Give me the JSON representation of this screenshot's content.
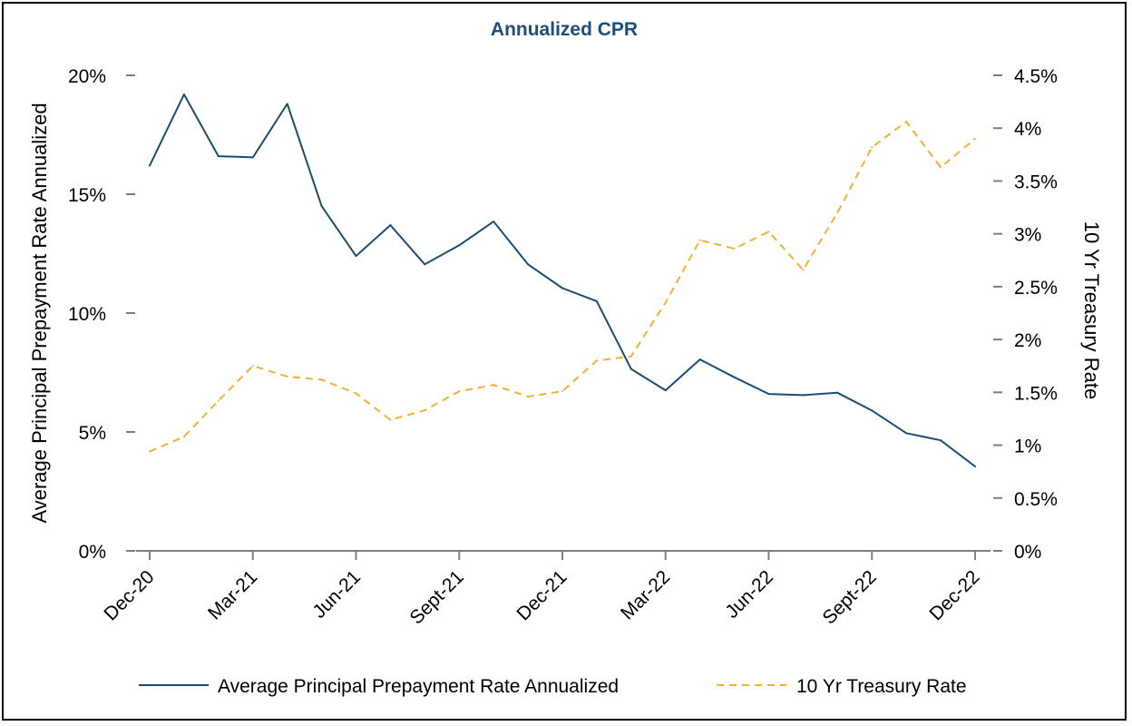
{
  "colors": {
    "title": "#1f4e79",
    "cpr_line": "#1b4f72",
    "treasury_line": "#f2b134",
    "axis": "#7f7f7f"
  },
  "chart_data": {
    "type": "line",
    "title": "Annualized CPR",
    "xlabel": "",
    "ylabel": "Average Principal Prepayment Rate Annualized",
    "y2label": "10 Yr Treasury Rate",
    "x_tick_labels": [
      "Dec-20",
      "Mar-21",
      "Jun-21",
      "Sept-21",
      "Dec-21",
      "Mar-22",
      "Jun-22",
      "Sept-22",
      "Dec-22"
    ],
    "x_tick_positions": [
      0,
      3,
      6,
      9,
      12,
      15,
      18,
      21,
      24
    ],
    "x_count": 25,
    "ylim": [
      0,
      20
    ],
    "y_ticks": [
      0,
      5,
      10,
      15,
      20
    ],
    "y_tick_labels": [
      "0%",
      "5%",
      "10%",
      "15%",
      "20%"
    ],
    "y2lim": [
      0,
      4.5
    ],
    "y2_ticks": [
      0,
      0.5,
      1,
      1.5,
      2,
      2.5,
      3,
      3.5,
      4,
      4.5
    ],
    "y2_tick_labels": [
      "0%",
      "0.5%",
      "1%",
      "1.5%",
      "2%",
      "2.5%",
      "3%",
      "3.5%",
      "4%",
      "4.5%"
    ],
    "legend_position": "bottom",
    "series": [
      {
        "name": "Average Principal Prepayment Rate Annualized",
        "axis": "left",
        "style": "solid",
        "values": [
          16.2,
          19.2,
          16.6,
          16.55,
          18.8,
          14.5,
          12.4,
          13.7,
          12.05,
          12.85,
          13.85,
          12.05,
          11.05,
          10.5,
          7.65,
          6.75,
          8.05,
          7.3,
          6.6,
          6.55,
          6.65,
          5.9,
          4.95,
          4.65,
          3.55
        ]
      },
      {
        "name": "10 Yr Treasury Rate",
        "axis": "right",
        "style": "dashed",
        "values": [
          0.94,
          1.08,
          1.42,
          1.75,
          1.65,
          1.62,
          1.49,
          1.24,
          1.33,
          1.51,
          1.57,
          1.46,
          1.51,
          1.8,
          1.84,
          2.35,
          2.94,
          2.86,
          3.02,
          2.66,
          3.2,
          3.82,
          4.06,
          3.63,
          3.9
        ]
      }
    ]
  }
}
